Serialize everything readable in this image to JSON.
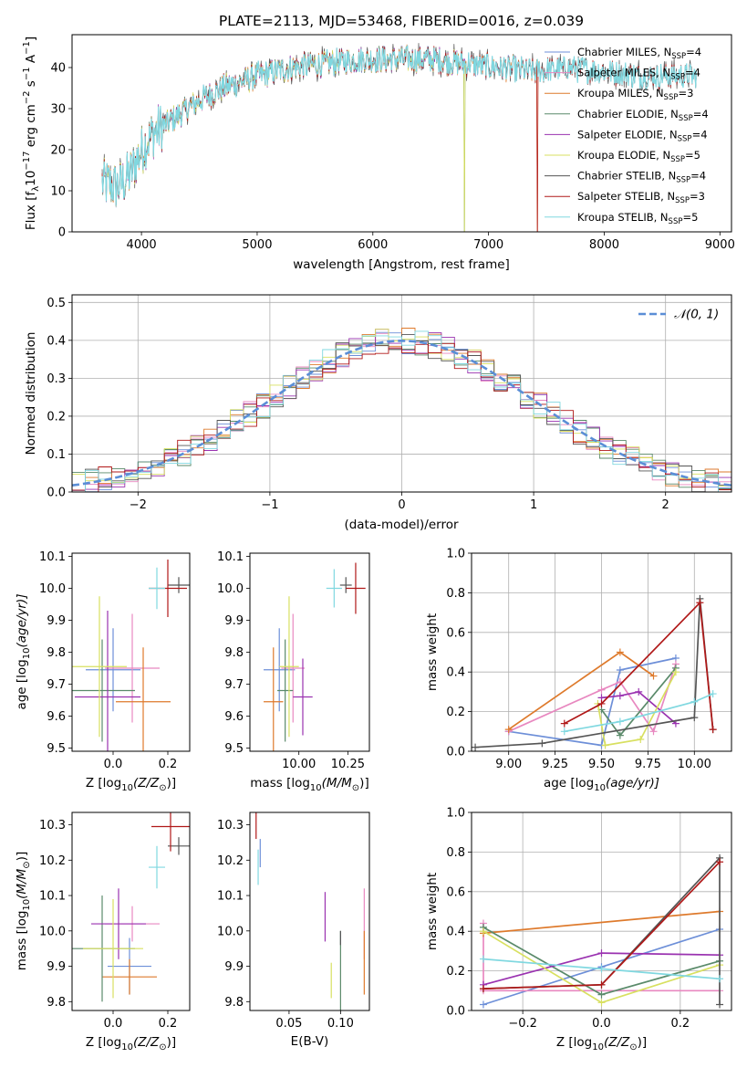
{
  "chart_data": [
    {
      "type": "line",
      "title": "PLATE=2113, MJD=53468, FIBERID=0016, z=0.039",
      "xlabel": "wavelength [Angstrom, rest frame]",
      "ylabel": "Flux [f",
      "ylabel_parts": {
        "lam": "λ",
        "ten": "10",
        "exp1": "−17",
        "mid": " erg cm",
        "exp2": "−2",
        "mid2": " s",
        "exp3": "−1",
        "end": " A",
        "exp4": "−1",
        "close": "]"
      },
      "xlim": [
        3400,
        9100
      ],
      "ylim": [
        0,
        48
      ],
      "xticks": [
        4000,
        5000,
        6000,
        7000,
        8000,
        9000
      ],
      "yticks": [
        0,
        10,
        20,
        30,
        40
      ],
      "legend_position": "top-right",
      "series": [
        {
          "name": "Chabrier MILES, N",
          "nssp": "=4",
          "color": "#6d8fd8",
          "x_end": 7450,
          "drop_at": null
        },
        {
          "name": "Salpeter MILES, N",
          "nssp": "=4",
          "color": "#e888c0",
          "x_end": 7450,
          "drop_at": null
        },
        {
          "name": "Kroupa MILES, N",
          "nssp": "=3",
          "color": "#de7a2c",
          "x_end": 7450,
          "drop_at": 7420
        },
        {
          "name": "Chabrier ELODIE, N",
          "nssp": "=4",
          "color": "#5a8a6a",
          "x_end": 6800,
          "drop_at": 6790
        },
        {
          "name": "Salpeter ELODIE, N",
          "nssp": "=4",
          "color": "#9a32b0",
          "x_end": 6800,
          "drop_at": null
        },
        {
          "name": "Kroupa ELODIE, N",
          "nssp": "=5",
          "color": "#d8e060",
          "x_end": 6800,
          "drop_at": 6790
        },
        {
          "name": "Chabrier STELIB, N",
          "nssp": "=4",
          "color": "#555555",
          "x_end": 8800,
          "drop_at": null
        },
        {
          "name": "Salpeter STELIB, N",
          "nssp": "=3",
          "color": "#b01818",
          "x_end": 8800,
          "drop_at": 7420
        },
        {
          "name": "Kroupa STELIB, N",
          "nssp": "=5",
          "color": "#80d8e0",
          "x_end": 8800,
          "drop_at": null
        }
      ],
      "spectrum_anchors": {
        "x": [
          3660,
          3800,
          3900,
          4000,
          4100,
          4300,
          4500,
          4700,
          5000,
          5300,
          5600,
          5900,
          6200,
          6500,
          6800,
          7100,
          7400,
          7700,
          8000,
          8300,
          8600,
          8800
        ],
        "y": [
          12,
          11,
          14,
          20,
          24,
          28,
          32,
          35,
          38,
          40,
          41,
          42,
          42,
          42,
          41,
          40,
          39,
          40,
          39,
          38,
          38,
          38
        ]
      }
    },
    {
      "type": "step",
      "xlabel": "(data-model)/error",
      "ylabel": "Normed distribution",
      "xlim": [
        -2.5,
        2.5
      ],
      "ylim": [
        0,
        0.52
      ],
      "xticks": [
        -2,
        -1,
        0,
        1,
        2
      ],
      "yticks": [
        0.0,
        0.1,
        0.2,
        0.3,
        0.4,
        0.5
      ],
      "grid": true,
      "legend": {
        "label": "𝒩(0, 1)",
        "position": "top-right"
      },
      "gaussian": {
        "mu": 0,
        "sigma": 1,
        "color": "#5b8ed6"
      },
      "bin_width": 0.1
    },
    {
      "type": "errorbar",
      "xlabel": "Z [log",
      "xlabel_sub": "10",
      "xlabel_rest": "(Z/Z",
      "xlabel_end": ")]",
      "ylabel": "age  [log",
      "ylabel_sub": "10",
      "ylabel_rest": "(age/yr)]",
      "xlim": [
        -0.15,
        0.28
      ],
      "ylim": [
        9.49,
        10.11
      ],
      "xticks": [
        0.0,
        0.2
      ],
      "yticks": [
        9.5,
        9.6,
        9.7,
        9.8,
        9.9,
        10.0,
        10.1
      ],
      "points": [
        {
          "series": "Chabrier MILES",
          "x": 0.0,
          "xerr": 0.1,
          "y": 9.745,
          "yerr": 0.13
        },
        {
          "series": "Salpeter MILES",
          "x": 0.07,
          "xerr": 0.1,
          "y": 9.75,
          "yerr": 0.17
        },
        {
          "series": "Kroupa MILES",
          "x": 0.11,
          "xerr": 0.1,
          "y": 9.645,
          "yerr": 0.17
        },
        {
          "series": "Chabrier ELODIE",
          "x": -0.04,
          "xerr": 0.12,
          "y": 9.68,
          "yerr": 0.16
        },
        {
          "series": "Salpeter ELODIE",
          "x": -0.02,
          "xerr": 0.12,
          "y": 9.66,
          "yerr": 0.27
        },
        {
          "series": "Kroupa ELODIE",
          "x": -0.05,
          "xerr": 0.1,
          "y": 9.755,
          "yerr": 0.22
        },
        {
          "series": "Chabrier STELIB",
          "x": 0.24,
          "xerr": 0.04,
          "y": 10.01,
          "yerr": 0.025
        },
        {
          "series": "Salpeter STELIB",
          "x": 0.2,
          "xerr": 0.07,
          "y": 10.0,
          "yerr": 0.09
        },
        {
          "series": "Kroupa STELIB",
          "x": 0.16,
          "xerr": 0.03,
          "y": 10.0,
          "yerr": 0.065
        }
      ]
    },
    {
      "type": "errorbar",
      "xlabel": "mass [log",
      "xlabel_sub": "10",
      "xlabel_rest": "(M/M",
      "xlabel_end": ")]",
      "xlim": [
        9.75,
        10.36
      ],
      "ylim": [
        9.49,
        10.11
      ],
      "xticks": [
        10.0,
        10.25
      ],
      "yticks": [
        9.5,
        9.6,
        9.7,
        9.8,
        9.9,
        10.0,
        10.1
      ],
      "points": [
        {
          "series": "Chabrier MILES",
          "x": 9.9,
          "xerr": 0.08,
          "y": 9.745,
          "yerr": 0.13
        },
        {
          "series": "Salpeter MILES",
          "x": 9.97,
          "xerr": 0.06,
          "y": 9.75,
          "yerr": 0.17
        },
        {
          "series": "Kroupa MILES",
          "x": 9.87,
          "xerr": 0.05,
          "y": 9.645,
          "yerr": 0.17
        },
        {
          "series": "Chabrier ELODIE",
          "x": 9.93,
          "xerr": 0.04,
          "y": 9.68,
          "yerr": 0.16
        },
        {
          "series": "Salpeter ELODIE",
          "x": 10.02,
          "xerr": 0.05,
          "y": 9.66,
          "yerr": 0.12
        },
        {
          "series": "Kroupa ELODIE",
          "x": 9.95,
          "xerr": 0.05,
          "y": 9.755,
          "yerr": 0.22
        },
        {
          "series": "Chabrier STELIB",
          "x": 10.24,
          "xerr": 0.03,
          "y": 10.01,
          "yerr": 0.025
        },
        {
          "series": "Salpeter STELIB",
          "x": 10.29,
          "xerr": 0.05,
          "y": 10.0,
          "yerr": 0.08
        },
        {
          "series": "Kroupa STELIB",
          "x": 10.18,
          "xerr": 0.04,
          "y": 10.0,
          "yerr": 0.06
        }
      ]
    },
    {
      "type": "line",
      "xlabel": "age  [log",
      "xlabel_sub": "10",
      "xlabel_rest": "(age/yr)]",
      "ylabel": "mass weight",
      "xlim": [
        8.8,
        10.2
      ],
      "ylim": [
        0.0,
        1.0
      ],
      "xticks": [
        9.0,
        9.25,
        9.5,
        9.75,
        10.0
      ],
      "yticks": [
        0.0,
        0.2,
        0.4,
        0.6,
        0.8,
        1.0
      ],
      "grid": true,
      "series": [
        {
          "name": "Chabrier MILES",
          "x": [
            9.0,
            9.5,
            9.6,
            9.9
          ],
          "y": [
            0.1,
            0.03,
            0.41,
            0.47
          ]
        },
        {
          "name": "Salpeter MILES",
          "x": [
            9.0,
            9.5,
            9.6,
            9.78,
            9.9
          ],
          "y": [
            0.1,
            0.31,
            0.35,
            0.1,
            0.44
          ]
        },
        {
          "name": "Kroupa MILES",
          "x": [
            9.0,
            9.6,
            9.78
          ],
          "y": [
            0.11,
            0.5,
            0.38
          ]
        },
        {
          "name": "Chabrier ELODIE",
          "x": [
            9.5,
            9.6,
            9.9
          ],
          "y": [
            0.21,
            0.08,
            0.42
          ]
        },
        {
          "name": "Salpeter ELODIE",
          "x": [
            9.5,
            9.6,
            9.7,
            9.9
          ],
          "y": [
            0.27,
            0.28,
            0.3,
            0.14
          ]
        },
        {
          "name": "Kroupa ELODIE",
          "x": [
            9.48,
            9.52,
            9.71,
            9.9
          ],
          "y": [
            0.24,
            0.03,
            0.06,
            0.4
          ]
        },
        {
          "name": "Chabrier STELIB",
          "x": [
            8.82,
            9.18,
            10.0,
            10.03,
            10.1
          ],
          "y": [
            0.02,
            0.04,
            0.17,
            0.77,
            0.11
          ]
        },
        {
          "name": "Salpeter STELIB",
          "x": [
            9.3,
            9.5,
            10.03,
            10.1
          ],
          "y": [
            0.14,
            0.24,
            0.75,
            0.11
          ]
        },
        {
          "name": "Kroupa STELIB",
          "x": [
            9.3,
            9.6,
            10.0,
            10.1
          ],
          "y": [
            0.1,
            0.15,
            0.25,
            0.29
          ]
        }
      ]
    },
    {
      "type": "errorbar",
      "xlabel": "Z [log",
      "xlabel_sub": "10",
      "xlabel_rest": "(Z/Z",
      "xlabel_end": ")]",
      "ylabel": "mass [log",
      "ylabel_sub": "10",
      "ylabel_rest": "(M/M",
      "ylabel_end": ")]",
      "xlim": [
        -0.15,
        0.28
      ],
      "ylim": [
        9.775,
        10.335
      ],
      "xticks": [
        0.0,
        0.2
      ],
      "yticks": [
        9.8,
        9.9,
        10.0,
        10.1,
        10.2,
        10.3
      ],
      "points": [
        {
          "series": "Chabrier MILES",
          "x": 0.06,
          "xerr": 0.08,
          "y": 9.9,
          "yerr": 0.08
        },
        {
          "series": "Salpeter MILES",
          "x": 0.07,
          "xerr": 0.1,
          "y": 10.02,
          "yerr": 0.05
        },
        {
          "series": "Kroupa MILES",
          "x": 0.06,
          "xerr": 0.1,
          "y": 9.87,
          "yerr": 0.05
        },
        {
          "series": "Chabrier ELODIE",
          "x": -0.04,
          "xerr": 0.12,
          "y": 9.95,
          "yerr": 0.15
        },
        {
          "series": "Salpeter ELODIE",
          "x": 0.02,
          "xerr": 0.1,
          "y": 10.02,
          "yerr": 0.1
        },
        {
          "series": "Kroupa ELODIE",
          "x": 0.0,
          "xerr": 0.11,
          "y": 9.95,
          "yerr": 0.14
        },
        {
          "series": "Chabrier STELIB",
          "x": 0.24,
          "xerr": 0.04,
          "y": 10.24,
          "yerr": 0.025
        },
        {
          "series": "Salpeter STELIB",
          "x": 0.21,
          "xerr": 0.07,
          "y": 10.295,
          "yerr": 0.07
        },
        {
          "series": "Kroupa STELIB",
          "x": 0.16,
          "xerr": 0.03,
          "y": 10.18,
          "yerr": 0.06
        }
      ]
    },
    {
      "type": "errorbar",
      "xlabel": "E(B-V)",
      "xlim": [
        0.012,
        0.128
      ],
      "ylim": [
        9.775,
        10.335
      ],
      "xticks": [
        0.05,
        0.1
      ],
      "yticks": [
        9.8,
        9.9,
        10.0,
        10.1,
        10.2,
        10.3
      ],
      "points": [
        {
          "series": "Chabrier MILES",
          "x": 0.022,
          "y": 10.22,
          "yerr": 0.04
        },
        {
          "series": "Salpeter MILES",
          "x": 0.123,
          "y": 10.02,
          "yerr": 0.1
        },
        {
          "series": "Kroupa MILES",
          "x": 0.123,
          "y": 9.91,
          "yerr": 0.09
        },
        {
          "series": "Chabrier ELODIE",
          "x": 0.1,
          "y": 9.88,
          "yerr": 0.12
        },
        {
          "series": "Salpeter ELODIE",
          "x": 0.085,
          "y": 10.04,
          "yerr": 0.07
        },
        {
          "series": "Kroupa ELODIE",
          "x": 0.091,
          "y": 9.86,
          "yerr": 0.05
        },
        {
          "series": "Chabrier STELIB",
          "x": 0.1,
          "y": 9.98,
          "yerr": 0.02
        },
        {
          "series": "Salpeter STELIB",
          "x": 0.018,
          "y": 10.3,
          "yerr": 0.04
        },
        {
          "series": "Kroupa STELIB",
          "x": 0.02,
          "y": 10.18,
          "yerr": 0.05
        }
      ]
    },
    {
      "type": "line",
      "xlabel": "Z [log",
      "xlabel_sub": "10",
      "xlabel_rest": "(Z/Z",
      "xlabel_end": ")]",
      "ylabel": "mass weight",
      "xlim": [
        -0.33,
        0.33
      ],
      "ylim": [
        0.0,
        1.0
      ],
      "xticks": [
        -0.2,
        0.0,
        0.2
      ],
      "yticks": [
        0.0,
        0.2,
        0.4,
        0.6,
        0.8,
        1.0
      ],
      "grid": true,
      "series": [
        {
          "name": "Chabrier MILES",
          "x": [
            -0.3,
            0.0,
            0.3
          ],
          "y": [
            0.03,
            0.22,
            0.41
          ]
        },
        {
          "name": "Salpeter MILES",
          "x": [
            -0.3,
            -0.3,
            0.3
          ],
          "y": [
            0.44,
            0.1,
            0.1
          ]
        },
        {
          "name": "Kroupa MILES",
          "x": [
            -0.3,
            0.3
          ],
          "y": [
            0.39,
            0.5
          ]
        },
        {
          "name": "Chabrier ELODIE",
          "x": [
            -0.3,
            0.0,
            0.3
          ],
          "y": [
            0.42,
            0.08,
            0.25
          ]
        },
        {
          "name": "Salpeter ELODIE",
          "x": [
            -0.3,
            0.0,
            0.3
          ],
          "y": [
            0.13,
            0.29,
            0.28
          ]
        },
        {
          "name": "Kroupa ELODIE",
          "x": [
            -0.3,
            0.0,
            0.3
          ],
          "y": [
            0.4,
            0.04,
            0.23
          ]
        },
        {
          "name": "Chabrier STELIB",
          "x": [
            -0.3,
            0.0,
            0.3,
            0.3
          ],
          "y": [
            0.11,
            0.13,
            0.77,
            0.03
          ]
        },
        {
          "name": "Salpeter STELIB",
          "x": [
            -0.3,
            0.0,
            0.3
          ],
          "y": [
            0.11,
            0.13,
            0.75
          ]
        },
        {
          "name": "Kroupa STELIB",
          "x": [
            -0.3,
            0.0,
            0.3
          ],
          "y": [
            0.26,
            0.21,
            0.16
          ]
        }
      ]
    }
  ],
  "ssp_label": "SSP",
  "sun_symbol": "⊙",
  "ten_label": "10"
}
